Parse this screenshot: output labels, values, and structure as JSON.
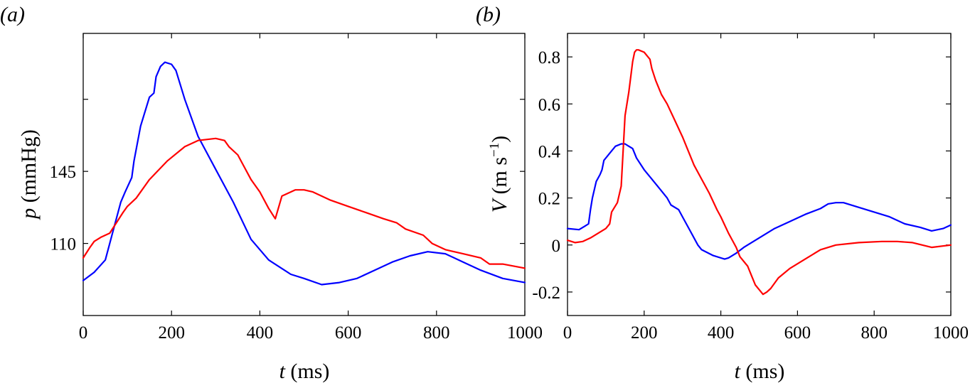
{
  "chart_data": [
    {
      "type": "line",
      "panel_label": "(a)",
      "xlabel_var": "t",
      "xlabel_unit": " (ms)",
      "ylabel_var": "p",
      "ylabel_unit": " (mmHg)",
      "xlim": [
        0,
        1000
      ],
      "ylim": [
        75,
        212
      ],
      "xticks": [
        0,
        200,
        400,
        600,
        800,
        1000
      ],
      "xtick_labels": [
        "0",
        "200",
        "400",
        "600",
        "800",
        "1000"
      ],
      "yticks": [
        110,
        145,
        180
      ],
      "ytick_labels": [
        "110",
        "145",
        ""
      ],
      "grid": false,
      "series": [
        {
          "color": "#0000ff",
          "x": [
            0,
            25,
            50,
            70,
            85,
            95,
            110,
            115,
            130,
            150,
            160,
            165,
            175,
            185,
            200,
            210,
            230,
            260,
            300,
            340,
            380,
            420,
            470,
            500,
            540,
            580,
            620,
            660,
            700,
            740,
            780,
            820,
            860,
            900,
            950,
            1000
          ],
          "y": [
            92,
            96,
            102,
            118,
            130,
            135,
            142,
            150,
            167,
            181,
            183,
            191,
            196,
            198,
            197,
            194,
            180,
            162,
            146,
            130,
            112,
            102,
            95,
            93,
            90,
            91,
            93,
            97,
            101,
            104,
            106,
            105,
            101,
            97,
            93,
            91
          ]
        },
        {
          "color": "#ff0000",
          "x": [
            0,
            15,
            25,
            40,
            60,
            75,
            90,
            100,
            120,
            150,
            190,
            230,
            260,
            300,
            320,
            330,
            350,
            360,
            380,
            400,
            420,
            435,
            450,
            470,
            480,
            500,
            520,
            560,
            600,
            640,
            680,
            710,
            730,
            770,
            790,
            820,
            860,
            900,
            920,
            950,
            1000
          ],
          "y": [
            103,
            108,
            111,
            113,
            115,
            120,
            125,
            128,
            132,
            141,
            150,
            157,
            160,
            161,
            160,
            157,
            153,
            149,
            141,
            135,
            127,
            122,
            133,
            135,
            136,
            136,
            135,
            131,
            128,
            125,
            122,
            120,
            117,
            114,
            110,
            107,
            105,
            103,
            100,
            100,
            98
          ]
        }
      ]
    },
    {
      "type": "line",
      "panel_label": "(b)",
      "xlabel_var": "t",
      "xlabel_unit": " (ms)",
      "ylabel_var": "V",
      "ylabel_unit_before": " (m s",
      "ylabel_unit_sup": "−1",
      "ylabel_unit_after": ")",
      "xlim": [
        0,
        1000
      ],
      "ylim": [
        -0.3,
        0.9
      ],
      "xticks": [
        0,
        200,
        400,
        600,
        800,
        1000
      ],
      "xtick_labels": [
        "0",
        "200",
        "400",
        "600",
        "800",
        "1000"
      ],
      "yticks": [
        -0.2,
        0,
        0.2,
        0.4,
        0.6,
        0.8
      ],
      "ytick_labels": [
        "-0.2",
        "0",
        "0.2",
        "0.4",
        "0.6",
        "0.8"
      ],
      "grid": false,
      "series": [
        {
          "color": "#0000ff",
          "x": [
            0,
            30,
            45,
            55,
            60,
            65,
            75,
            85,
            90,
            95,
            110,
            125,
            140,
            150,
            160,
            170,
            180,
            200,
            220,
            240,
            260,
            270,
            290,
            300,
            320,
            340,
            350,
            380,
            410,
            420,
            440,
            460,
            480,
            500,
            540,
            580,
            620,
            660,
            680,
            700,
            720,
            760,
            800,
            840,
            880,
            920,
            950,
            980,
            1000
          ],
          "y": [
            0.07,
            0.065,
            0.08,
            0.09,
            0.15,
            0.2,
            0.27,
            0.3,
            0.32,
            0.36,
            0.39,
            0.42,
            0.43,
            0.43,
            0.42,
            0.41,
            0.37,
            0.32,
            0.28,
            0.24,
            0.2,
            0.17,
            0.15,
            0.12,
            0.06,
            0.0,
            -0.02,
            -0.045,
            -0.06,
            -0.055,
            -0.035,
            -0.01,
            0.01,
            0.03,
            0.07,
            0.1,
            0.13,
            0.155,
            0.175,
            0.18,
            0.18,
            0.16,
            0.14,
            0.12,
            0.09,
            0.075,
            0.06,
            0.07,
            0.085
          ]
        },
        {
          "color": "#ff0000",
          "x": [
            0,
            20,
            40,
            60,
            80,
            100,
            110,
            115,
            130,
            140,
            150,
            160,
            170,
            175,
            180,
            185,
            200,
            215,
            220,
            230,
            245,
            260,
            280,
            300,
            315,
            330,
            350,
            370,
            390,
            400,
            420,
            430,
            440,
            450,
            470,
            480,
            490,
            500,
            510,
            520,
            530,
            550,
            580,
            620,
            660,
            700,
            760,
            820,
            860,
            900,
            950,
            1000
          ],
          "y": [
            0.02,
            0.01,
            0.015,
            0.03,
            0.05,
            0.07,
            0.09,
            0.14,
            0.18,
            0.25,
            0.55,
            0.65,
            0.78,
            0.82,
            0.83,
            0.83,
            0.82,
            0.79,
            0.75,
            0.7,
            0.64,
            0.6,
            0.53,
            0.46,
            0.4,
            0.34,
            0.28,
            0.22,
            0.15,
            0.12,
            0.05,
            0.02,
            -0.01,
            -0.05,
            -0.09,
            -0.13,
            -0.17,
            -0.19,
            -0.21,
            -0.2,
            -0.185,
            -0.14,
            -0.1,
            -0.06,
            -0.02,
            0.0,
            0.01,
            0.015,
            0.015,
            0.01,
            -0.01,
            0.0
          ]
        }
      ]
    }
  ]
}
